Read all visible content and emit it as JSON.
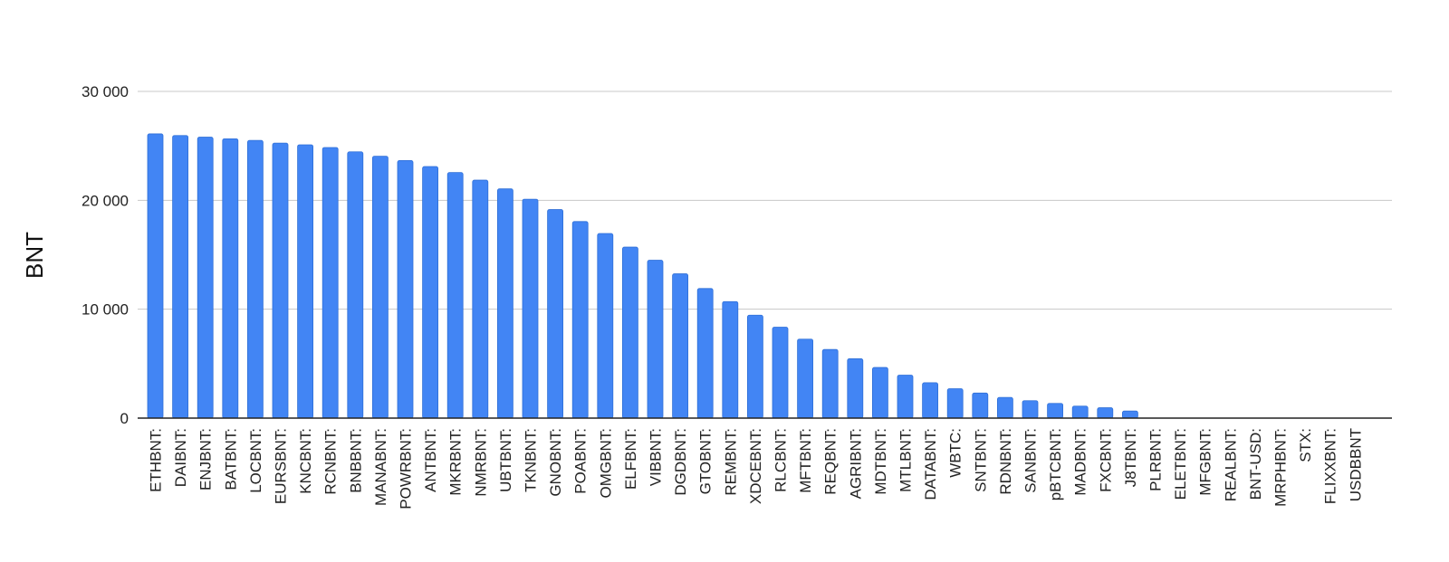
{
  "chart_data": {
    "type": "bar",
    "ylabel": "BNT",
    "ylim": [
      0,
      30000
    ],
    "yticks": [
      0,
      10000,
      20000,
      30000
    ],
    "ytick_labels": [
      "0",
      "10 000",
      "20 000",
      "30 000"
    ],
    "grid": true,
    "bar_color": "#4285f4",
    "categories": [
      "ETHBNT:",
      "DAIBNT:",
      "ENJBNT:",
      "BATBNT:",
      "LOCBNT:",
      "EURSBNT:",
      "KNCBNT:",
      "RCNBNT:",
      "BNBBNT:",
      "MANABNT:",
      "POWRBNT:",
      "ANTBNT:",
      "MKRBNT:",
      "NMRBNT:",
      "UBTBNT:",
      "TKNBNT:",
      "GNOBNT:",
      "POABNT:",
      "OMGBNT:",
      "ELFBNT:",
      "VIBBNT:",
      "DGDBNT:",
      "GTOBNT:",
      "REMBNT:",
      "XDCEBNT:",
      "RLCBNT:",
      "MFTBNT:",
      "REQBNT:",
      "AGRIBNT:",
      "MDTBNT:",
      "MTLBNT:",
      "DATABNT:",
      "WBTC:",
      "SNTBNT:",
      "RDNBNT:",
      "SANBNT:",
      "pBTCBNT:",
      "MADBNT:",
      "FXCBNT:",
      "J8TBNT:",
      "PLRBNT:",
      "ELETBNT:",
      "MFGBNT:",
      "REALBNT:",
      "BNT-USD:",
      "MRPHBNT:",
      "STX:",
      "FLIXXBNT:",
      "USDBBNT"
    ],
    "values": [
      26100,
      25950,
      25800,
      25650,
      25500,
      25250,
      25100,
      24850,
      24450,
      24050,
      23650,
      23100,
      22550,
      21850,
      21050,
      20100,
      19150,
      18050,
      16950,
      15700,
      14500,
      13250,
      11900,
      10700,
      9450,
      8350,
      7250,
      6300,
      5450,
      4650,
      3950,
      3250,
      2700,
      2300,
      1900,
      1600,
      1350,
      1100,
      950,
      650,
      0,
      0,
      0,
      0,
      0,
      0,
      0,
      0,
      0
    ]
  }
}
